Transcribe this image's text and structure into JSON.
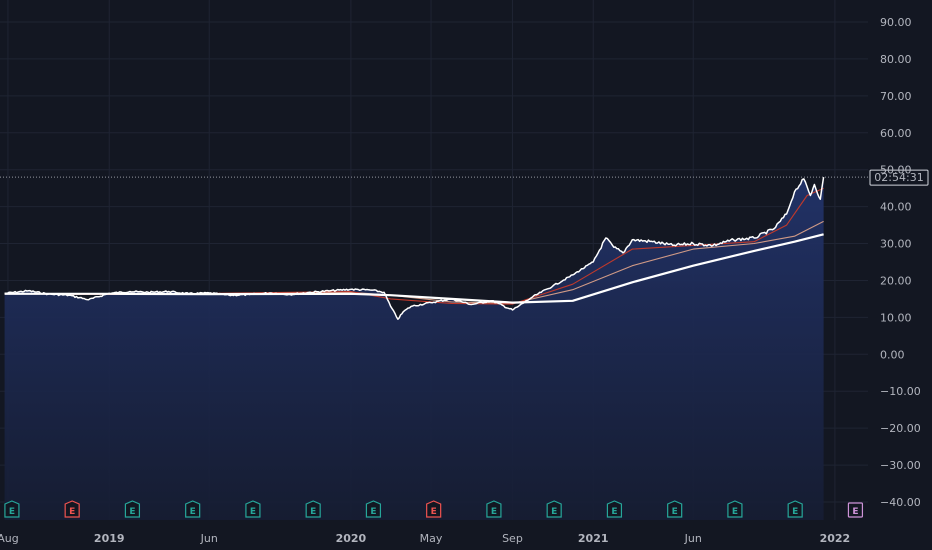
{
  "chart_data": {
    "type": "line",
    "title": "",
    "xlabel": "",
    "ylabel": "",
    "ylim": [
      -45,
      97
    ],
    "y_ticks": [
      90,
      80,
      70,
      60,
      50,
      40,
      30,
      20,
      10,
      0,
      -10,
      -20,
      -30,
      -40
    ],
    "y_tick_labels": [
      "90.00",
      "80.00",
      "70.00",
      "60.00",
      "50.00",
      "40.00",
      "30.00",
      "20.00",
      "10.00",
      "0.00",
      "−10.00",
      "−20.00",
      "−30.00",
      "−40.00"
    ],
    "x_range": [
      "2018-07-20",
      "2022-02-20"
    ],
    "x_ticks": [
      {
        "label": "Aug",
        "date": "2018-08-01",
        "bold": false
      },
      {
        "label": "2019",
        "date": "2019-01-01",
        "bold": true
      },
      {
        "label": "Jun",
        "date": "2019-06-01",
        "bold": false
      },
      {
        "label": "2020",
        "date": "2020-01-01",
        "bold": true
      },
      {
        "label": "May",
        "date": "2020-05-01",
        "bold": false
      },
      {
        "label": "Sep",
        "date": "2020-09-01",
        "bold": false
      },
      {
        "label": "2021",
        "date": "2021-01-01",
        "bold": true
      },
      {
        "label": "Jun",
        "date": "2021-06-01",
        "bold": false
      },
      {
        "label": "2022",
        "date": "2022-01-01",
        "bold": true
      }
    ],
    "price_line": {
      "value": 48,
      "label": "02:54:31"
    },
    "grid": true,
    "series": [
      {
        "name": "",
        "role": "price",
        "color": "#ffffff",
        "x": [
          "2018-07-27",
          "2018-09-01",
          "2018-10-01",
          "2018-11-01",
          "2018-12-01",
          "2019-01-01",
          "2019-02-01",
          "2019-03-01",
          "2019-04-01",
          "2019-05-01",
          "2019-06-01",
          "2019-07-01",
          "2019-08-01",
          "2019-09-01",
          "2019-10-01",
          "2019-11-01",
          "2019-12-01",
          "2020-01-01",
          "2020-02-01",
          "2020-02-20",
          "2020-03-01",
          "2020-03-12",
          "2020-03-20",
          "2020-04-01",
          "2020-05-01",
          "2020-06-01",
          "2020-07-01",
          "2020-08-01",
          "2020-09-01",
          "2020-09-10",
          "2020-10-01",
          "2020-11-01",
          "2020-12-01",
          "2021-01-01",
          "2021-01-20",
          "2021-02-01",
          "2021-02-15",
          "2021-03-01",
          "2021-04-01",
          "2021-05-01",
          "2021-06-01",
          "2021-07-01",
          "2021-08-01",
          "2021-09-01",
          "2021-10-01",
          "2021-10-20",
          "2021-11-01",
          "2021-11-15",
          "2021-11-25",
          "2021-12-01",
          "2021-12-10",
          "2021-12-15"
        ],
        "values": [
          16.5,
          17.2,
          16.3,
          16.0,
          14.8,
          16.5,
          17.0,
          16.8,
          17.0,
          16.4,
          16.6,
          16.0,
          16.2,
          16.6,
          16.2,
          16.8,
          17.2,
          17.6,
          17.4,
          16.8,
          13.0,
          9.5,
          11.5,
          13.0,
          14.0,
          15.0,
          13.5,
          14.5,
          12.0,
          13.0,
          15.5,
          18.5,
          21.5,
          25.0,
          31.5,
          29.0,
          27.5,
          31.0,
          30.5,
          29.5,
          30.0,
          29.5,
          31.0,
          31.5,
          34.0,
          38.0,
          44.0,
          47.5,
          43.0,
          46.0,
          42.0,
          48.0
        ]
      },
      {
        "name": "",
        "role": "ma-long",
        "color": "#ffffff",
        "x": [
          "2018-07-27",
          "2019-01-01",
          "2019-06-01",
          "2020-01-01",
          "2020-03-01",
          "2020-06-01",
          "2020-09-01",
          "2020-12-01",
          "2021-03-01",
          "2021-06-01",
          "2021-09-01",
          "2021-11-01",
          "2021-12-15"
        ],
        "values": [
          16.4,
          16.4,
          16.3,
          16.4,
          16.0,
          15.0,
          14.0,
          14.5,
          19.5,
          24.0,
          28.0,
          30.5,
          32.5
        ]
      },
      {
        "name": "",
        "role": "ma-mid",
        "color": "#d09a86",
        "x": [
          "2018-07-27",
          "2019-01-01",
          "2019-06-01",
          "2020-01-01",
          "2020-03-01",
          "2020-06-01",
          "2020-09-01",
          "2020-12-01",
          "2021-03-01",
          "2021-06-01",
          "2021-09-01",
          "2021-11-01",
          "2021-12-15"
        ],
        "values": [
          16.4,
          16.3,
          16.4,
          16.8,
          16.0,
          14.2,
          13.8,
          17.5,
          24.0,
          28.5,
          30.0,
          32.0,
          36.0
        ]
      },
      {
        "name": "",
        "role": "ma-short",
        "color": "#c0392b",
        "x": [
          "2018-07-27",
          "2019-01-01",
          "2019-06-01",
          "2020-01-01",
          "2020-03-01",
          "2020-06-01",
          "2020-09-01",
          "2020-12-01",
          "2021-03-01",
          "2021-06-01",
          "2021-09-01",
          "2021-10-20",
          "2021-11-20",
          "2021-12-15"
        ],
        "values": [
          16.4,
          16.2,
          16.5,
          17.0,
          15.0,
          13.8,
          13.6,
          19.0,
          28.5,
          29.5,
          30.5,
          35.0,
          43.0,
          45.0
        ]
      }
    ],
    "events": [
      {
        "date": "2018-08-07",
        "label": "E",
        "color": "#26a69a"
      },
      {
        "date": "2018-11-06",
        "label": "E",
        "color": "#ef5350"
      },
      {
        "date": "2019-02-05",
        "label": "E",
        "color": "#26a69a"
      },
      {
        "date": "2019-05-07",
        "label": "E",
        "color": "#26a69a"
      },
      {
        "date": "2019-08-06",
        "label": "E",
        "color": "#26a69a"
      },
      {
        "date": "2019-11-05",
        "label": "E",
        "color": "#26a69a"
      },
      {
        "date": "2020-02-04",
        "label": "E",
        "color": "#26a69a"
      },
      {
        "date": "2020-05-05",
        "label": "E",
        "color": "#ef5350"
      },
      {
        "date": "2020-08-04",
        "label": "E",
        "color": "#26a69a"
      },
      {
        "date": "2020-11-03",
        "label": "E",
        "color": "#26a69a"
      },
      {
        "date": "2021-02-02",
        "label": "E",
        "color": "#26a69a"
      },
      {
        "date": "2021-05-04",
        "label": "E",
        "color": "#26a69a"
      },
      {
        "date": "2021-08-03",
        "label": "E",
        "color": "#26a69a"
      },
      {
        "date": "2021-11-02",
        "label": "E",
        "color": "#26a69a"
      },
      {
        "date": "2022-02-01",
        "label": "E",
        "color": "#ce93d8"
      }
    ]
  }
}
